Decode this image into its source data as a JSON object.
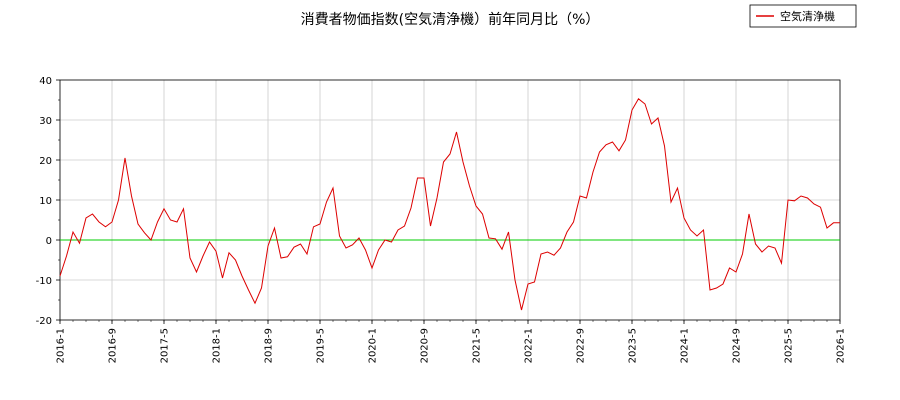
{
  "chart_data": {
    "type": "line",
    "title": "消費者物価指数(空気清浄機）前年同月比（%）",
    "xlabel": "",
    "ylabel": "",
    "ylim": [
      -20,
      40
    ],
    "yticks": [
      -20,
      -10,
      0,
      10,
      20,
      30,
      40
    ],
    "x_tick_labels": [
      "2016-1",
      "2016-9",
      "2017-5",
      "2018-1",
      "2018-9",
      "2019-5",
      "2020-1",
      "2020-9",
      "2021-5",
      "2022-1",
      "2022-9",
      "2023-5",
      "2024-1",
      "2024-9",
      "2025-5",
      "2026-1"
    ],
    "x_tick_step_months": 8,
    "x_start": "2016-1",
    "x_end": "2026-1",
    "grid": true,
    "legend_position": "top-right",
    "zero_line_color": "#00cc00",
    "series": [
      {
        "name": "空気清浄機",
        "color": "#dd0000",
        "x": [
          "2016-1",
          "2016-2",
          "2016-3",
          "2016-4",
          "2016-5",
          "2016-6",
          "2016-7",
          "2016-8",
          "2016-9",
          "2016-10",
          "2016-11",
          "2016-12",
          "2017-1",
          "2017-2",
          "2017-3",
          "2017-4",
          "2017-5",
          "2017-6",
          "2017-7",
          "2017-8",
          "2017-9",
          "2017-10",
          "2017-11",
          "2017-12",
          "2018-1",
          "2018-2",
          "2018-3",
          "2018-4",
          "2018-5",
          "2018-6",
          "2018-7",
          "2018-8",
          "2018-9",
          "2018-10",
          "2018-11",
          "2018-12",
          "2019-1",
          "2019-2",
          "2019-3",
          "2019-4",
          "2019-5",
          "2019-6",
          "2019-7",
          "2019-8",
          "2019-9",
          "2019-10",
          "2019-11",
          "2019-12",
          "2020-1",
          "2020-2",
          "2020-3",
          "2020-4",
          "2020-5",
          "2020-6",
          "2020-7",
          "2020-8",
          "2020-9",
          "2020-10",
          "2020-11",
          "2020-12",
          "2021-1",
          "2021-2",
          "2021-3",
          "2021-4",
          "2021-5",
          "2021-6",
          "2021-7",
          "2021-8",
          "2021-9",
          "2021-10",
          "2021-11",
          "2021-12",
          "2022-1",
          "2022-2",
          "2022-3",
          "2022-4",
          "2022-5",
          "2022-6",
          "2022-7",
          "2022-8",
          "2022-9",
          "2022-10",
          "2022-11",
          "2022-12",
          "2023-1",
          "2023-2",
          "2023-3",
          "2023-4",
          "2023-5",
          "2023-6",
          "2023-7",
          "2023-8",
          "2023-9",
          "2023-10",
          "2023-11",
          "2023-12",
          "2024-1",
          "2024-2",
          "2024-3",
          "2024-4",
          "2024-5",
          "2024-6",
          "2024-7",
          "2024-8",
          "2024-9",
          "2024-10",
          "2024-11",
          "2024-12",
          "2025-1",
          "2025-2",
          "2025-3",
          "2025-4",
          "2025-5",
          "2025-6",
          "2025-7",
          "2025-8",
          "2025-9",
          "2025-10",
          "2025-11",
          "2025-12",
          "2026-1"
        ],
        "values": [
          -9.0,
          -4.0,
          2.0,
          -0.8,
          5.5,
          6.5,
          4.5,
          3.3,
          4.5,
          10.0,
          20.5,
          11.0,
          4.0,
          1.8,
          0.0,
          4.5,
          7.8,
          5.0,
          4.5,
          7.8,
          -4.5,
          -8.0,
          -4.0,
          -0.5,
          -2.8,
          -9.5,
          -3.2,
          -5.0,
          -9.0,
          -12.5,
          -15.8,
          -12.0,
          -1.5,
          3.0,
          -4.5,
          -4.2,
          -1.8,
          -1.0,
          -3.5,
          3.3,
          4.0,
          9.5,
          13.0,
          1.0,
          -2.0,
          -1.2,
          0.5,
          -2.5,
          -7.0,
          -2.5,
          0.0,
          -0.5,
          2.5,
          3.5,
          8.0,
          15.5,
          15.5,
          3.5,
          10.5,
          19.5,
          21.5,
          27.0,
          19.5,
          13.5,
          8.5,
          6.5,
          0.5,
          0.3,
          -2.3,
          2.0,
          -10.0,
          -17.5,
          -11.0,
          -10.5,
          -3.5,
          -3.0,
          -3.8,
          -2.0,
          2.0,
          4.5,
          11.0,
          10.5,
          17.0,
          22.0,
          23.8,
          24.5,
          22.3,
          25.0,
          32.5,
          35.3,
          34.0,
          29.0,
          30.5,
          23.5,
          9.5,
          13.0,
          5.5,
          2.5,
          1.0,
          2.5,
          -12.5,
          -12.0,
          -11.0,
          -7.0,
          -8.0,
          -3.5,
          6.5,
          -1.0,
          -3.0,
          -1.5,
          -2.0,
          -5.8,
          10.0,
          9.8,
          11.0,
          10.5,
          9.0,
          8.2,
          3.0,
          4.3,
          4.3
        ]
      }
    ]
  }
}
